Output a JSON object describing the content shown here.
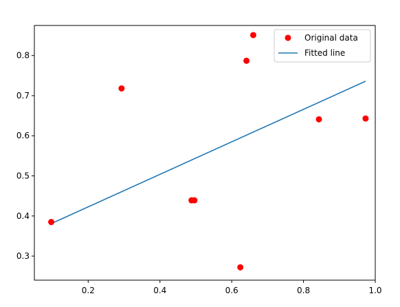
{
  "chart_data": {
    "type": "scatter",
    "title": "",
    "xlabel": "",
    "ylabel": "",
    "xlim": [
      0.05,
      1.0
    ],
    "ylim": [
      0.24,
      0.875
    ],
    "xticks": [
      0.2,
      0.4,
      0.6,
      0.8,
      1.0
    ],
    "xtick_labels": [
      "0.2",
      "0.4",
      "0.6",
      "0.8",
      "1.0"
    ],
    "yticks": [
      0.3,
      0.4,
      0.5,
      0.6,
      0.7,
      0.8
    ],
    "ytick_labels": [
      "0.3",
      "0.4",
      "0.5",
      "0.6",
      "0.7",
      "0.8"
    ],
    "grid": false,
    "legend_position": "top-right",
    "series": [
      {
        "name": "Original data",
        "kind": "scatter",
        "color": "#ff0000",
        "points": [
          {
            "x": 0.097,
            "y": 0.385
          },
          {
            "x": 0.293,
            "y": 0.718
          },
          {
            "x": 0.488,
            "y": 0.439
          },
          {
            "x": 0.496,
            "y": 0.439
          },
          {
            "x": 0.624,
            "y": 0.272
          },
          {
            "x": 0.641,
            "y": 0.787
          },
          {
            "x": 0.66,
            "y": 0.851
          },
          {
            "x": 0.843,
            "y": 0.641
          },
          {
            "x": 0.973,
            "y": 0.643
          }
        ]
      },
      {
        "name": "Fitted line",
        "kind": "line",
        "color": "#1f77b4",
        "points": [
          {
            "x": 0.097,
            "y": 0.381
          },
          {
            "x": 0.973,
            "y": 0.736
          }
        ]
      }
    ]
  }
}
